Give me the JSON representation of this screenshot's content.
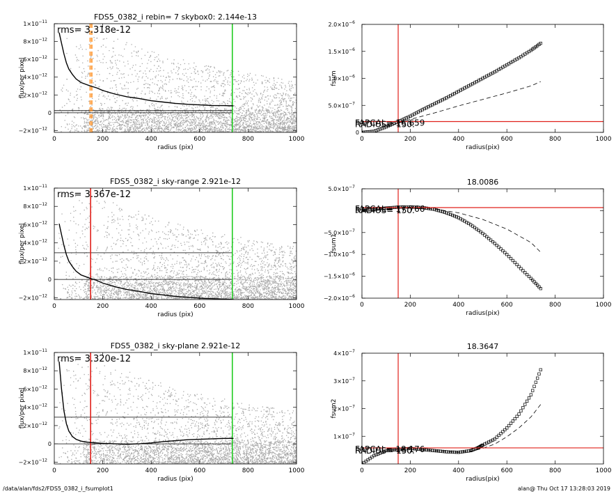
{
  "footer": {
    "path": "/data/alan/fds2/FDS5_0382_i_fsumplot1",
    "user_time": "alan@  Thu Oct 17 13:28:03 2019"
  },
  "colors": {
    "scatter": "#a8a8a8",
    "profile": "#000000",
    "orange": "#ff8c1a",
    "red": "#e0201a",
    "green": "#22cc22",
    "guide": "#000000"
  },
  "chart_data": [
    {
      "id": "p1",
      "type": "scatter",
      "title": "FDS5_0382_i rebin= 7    skybox0:  2.144e-13",
      "annotation": "rms= 3.318e-12",
      "xlabel": "radius (pix)",
      "ylabel": "flux/per pixel",
      "xlim": [
        0,
        1000
      ],
      "ylim": [
        -2.2e-12,
        1e-11
      ],
      "xticks": [
        0,
        200,
        400,
        600,
        800,
        1000
      ],
      "xtick_labels": [
        "0",
        "200",
        "400",
        "600",
        "800",
        "1000"
      ],
      "yticks": [
        -2e-12,
        0,
        2e-12,
        4e-12,
        6e-12,
        8e-12,
        1e-11
      ],
      "ytick_labels": [
        "−2×10",
        "0",
        "2×10",
        "4×10",
        "6×10",
        "8×10",
        "1×10"
      ],
      "ytick_exp": [
        "−12",
        "",
        "−12",
        "−12",
        "−12",
        "−12",
        "−11"
      ],
      "profile": {
        "x": [
          20,
          30,
          40,
          50,
          60,
          75,
          90,
          110,
          130,
          150,
          175,
          200,
          250,
          300,
          350,
          400,
          450,
          500,
          550,
          600,
          650,
          700,
          740
        ],
        "y": [
          9e-12,
          7.8e-12,
          6.6e-12,
          5.6e-12,
          4.9e-12,
          4.3e-12,
          3.8e-12,
          3.4e-12,
          3.2e-12,
          3e-12,
          2.8e-12,
          2.5e-12,
          2.1e-12,
          1.8e-12,
          1.6e-12,
          1.35e-12,
          1.2e-12,
          1.05e-12,
          9.5e-13,
          8.8e-13,
          8.2e-13,
          8e-13,
          7.8e-13
        ]
      },
      "hlines": [
        2.4e-13,
        0.0
      ],
      "vlines": [
        {
          "x": 148,
          "color": "orange",
          "dash": true
        },
        {
          "x": 155,
          "color": "orange",
          "dash": true
        },
        {
          "x": 735,
          "color": "green",
          "dash": false
        }
      ],
      "scatter_band": {
        "upper": [
          1e-11,
          9e-12,
          7e-12,
          5.5e-12,
          4.5e-12,
          3.6e-12
        ],
        "upper_x": [
          0,
          200,
          400,
          600,
          800,
          1000
        ],
        "lower": -2.2e-12
      }
    },
    {
      "id": "p2",
      "type": "line",
      "title": "",
      "annotation": "RADIUS= 150.",
      "annotation2": "FAPCAL= 16.659",
      "xlabel": "radius(pix)",
      "ylabel": "fsum",
      "xlim": [
        0,
        1000
      ],
      "ylim": [
        0,
        2e-06
      ],
      "xticks": [
        0,
        200,
        400,
        600,
        800,
        1000
      ],
      "xtick_labels": [
        "0",
        "200",
        "400",
        "600",
        "800",
        "1000"
      ],
      "yticks": [
        0,
        5e-07,
        1e-06,
        1.5e-06,
        2e-06
      ],
      "ytick_labels": [
        "0",
        "5.0×10",
        "1.0×10",
        "1.5×10",
        "2.0×10"
      ],
      "ytick_exp": [
        "",
        "−7",
        "−6",
        "−6",
        "−6"
      ],
      "markers": {
        "x": [
          0,
          50,
          100,
          150,
          200,
          250,
          300,
          350,
          400,
          450,
          500,
          550,
          600,
          650,
          700,
          740
        ],
        "y": [
          0,
          2e-08,
          1e-07,
          2e-07,
          3e-07,
          4.2e-07,
          5.3e-07,
          6.4e-07,
          7.6e-07,
          8.8e-07,
          1e-06,
          1.12e-06,
          1.25e-06,
          1.38e-06,
          1.52e-06,
          1.65e-06
        ]
      },
      "dashed": {
        "x": [
          100,
          200,
          300,
          400,
          500,
          600,
          700,
          740
        ],
        "y": [
          1e-07,
          2.4e-07,
          3.6e-07,
          4.9e-07,
          6.1e-07,
          7.3e-07,
          8.6e-07,
          9.4e-07
        ]
      },
      "vline_x": 150,
      "hline_y": 2e-07
    },
    {
      "id": "p3",
      "type": "scatter",
      "title": "FDS5_0382_i sky-range  2.921e-12",
      "annotation": "rms= 3.367e-12",
      "xlabel": "radius (pix)",
      "ylabel": "flux/per pixel",
      "xlim": [
        0,
        1000
      ],
      "ylim": [
        -2.2e-12,
        1e-11
      ],
      "xticks": [
        0,
        200,
        400,
        600,
        800,
        1000
      ],
      "xtick_labels": [
        "0",
        "200",
        "400",
        "600",
        "800",
        "1000"
      ],
      "yticks": [
        -2e-12,
        0,
        2e-12,
        4e-12,
        6e-12,
        8e-12,
        1e-11
      ],
      "ytick_labels": [
        "−2×10",
        "0",
        "2×10",
        "4×10",
        "6×10",
        "8×10",
        "1×10"
      ],
      "ytick_exp": [
        "−12",
        "",
        "−12",
        "−12",
        "−12",
        "−12",
        "−11"
      ],
      "profile": {
        "x": [
          20,
          30,
          40,
          50,
          60,
          75,
          90,
          110,
          130,
          150,
          175,
          200,
          250,
          300,
          350,
          400,
          450,
          500,
          550,
          600,
          650,
          700,
          740
        ],
        "y": [
          6.1e-12,
          4.9e-12,
          3.7e-12,
          2.7e-12,
          2e-12,
          1.4e-12,
          9e-13,
          5e-13,
          3e-13,
          1e-13,
          -1e-13,
          -4e-13,
          -8e-13,
          -1.1e-12,
          -1.3e-12,
          -1.55e-12,
          -1.7e-12,
          -1.85e-12,
          -1.95e-12,
          -2.05e-12,
          -2.1e-12,
          -2.15e-12,
          -2.2e-12
        ]
      },
      "hlines": [
        2.921e-12,
        0.0
      ],
      "vlines": [
        {
          "x": 150,
          "color": "red",
          "dash": false
        },
        {
          "x": 735,
          "color": "green",
          "dash": false
        }
      ],
      "scatter_band": {
        "upper": [
          1e-11,
          9e-12,
          7e-12,
          5.5e-12,
          4.5e-12,
          3.6e-12
        ],
        "upper_x": [
          0,
          200,
          400,
          600,
          800,
          1000
        ],
        "lower": -2.2e-12
      }
    },
    {
      "id": "p4",
      "type": "line",
      "title": "18.0086",
      "annotation": "RADIUS= 150.",
      "annotation2": "FAPCAL= 17.766",
      "xlabel": "radius(pix)",
      "ylabel": "fsum1",
      "xlim": [
        0,
        1000
      ],
      "ylim": [
        -2e-06,
        5e-07
      ],
      "xticks": [
        0,
        200,
        400,
        600,
        800,
        1000
      ],
      "xtick_labels": [
        "0",
        "200",
        "400",
        "600",
        "800",
        "1000"
      ],
      "yticks": [
        -2e-06,
        -1.5e-06,
        -1e-06,
        -5e-07,
        0,
        5e-07
      ],
      "ytick_labels": [
        "−2.0×10",
        "−1.5×10",
        "−1.0×10",
        "−5.0×10",
        "0",
        "5.0×10"
      ],
      "ytick_exp": [
        "−6",
        "−6",
        "−6",
        "−7",
        "",
        "−7"
      ],
      "markers": {
        "x": [
          0,
          50,
          100,
          150,
          200,
          250,
          300,
          350,
          400,
          450,
          500,
          550,
          600,
          650,
          700,
          740
        ],
        "y": [
          0,
          3e-08,
          6e-08,
          8e-08,
          8.5e-08,
          7e-08,
          3e-08,
          -5e-08,
          -1.6e-07,
          -3.2e-07,
          -5.2e-07,
          -7.5e-07,
          -1e-06,
          -1.28e-06,
          -1.55e-06,
          -1.78e-06
        ]
      },
      "dashed": {
        "x": [
          100,
          200,
          300,
          400,
          500,
          600,
          700,
          740
        ],
        "y": [
          6e-08,
          8e-08,
          4e-08,
          -5e-08,
          -2e-07,
          -4.2e-07,
          -7.3e-07,
          -9.5e-07
        ]
      },
      "vline_x": 150,
      "hline_y": 7e-08
    },
    {
      "id": "p5",
      "type": "scatter",
      "title": "FDS5_0382_i sky-plane  2.921e-12",
      "annotation": "rms= 3.320e-12",
      "xlabel": "radius (pix)",
      "ylabel": "flux/per pixel",
      "xlim": [
        0,
        1000
      ],
      "ylim": [
        -2.2e-12,
        1e-11
      ],
      "xticks": [
        0,
        200,
        400,
        600,
        800,
        1000
      ],
      "xtick_labels": [
        "0",
        "200",
        "400",
        "600",
        "800",
        "1000"
      ],
      "yticks": [
        -2e-12,
        0,
        2e-12,
        4e-12,
        6e-12,
        8e-12,
        1e-11
      ],
      "ytick_labels": [
        "−2×10",
        "0",
        "2×10",
        "4×10",
        "6×10",
        "8×10",
        "1×10"
      ],
      "ytick_exp": [
        "−12",
        "",
        "−12",
        "−12",
        "−12",
        "−12",
        "−11"
      ],
      "profile": {
        "x": [
          20,
          30,
          40,
          50,
          60,
          75,
          90,
          110,
          130,
          150,
          175,
          200,
          250,
          300,
          350,
          400,
          450,
          500,
          550,
          600,
          650,
          700,
          740
        ],
        "y": [
          9e-12,
          6e-12,
          3.6e-12,
          2.2e-12,
          1.4e-12,
          8e-13,
          5e-13,
          3e-13,
          2e-13,
          1.5e-13,
          1e-13,
          5e-14,
          0.0,
          -5e-14,
          0.0,
          1e-13,
          2.5e-13,
          3.5e-13,
          4.5e-13,
          5e-13,
          5.5e-13,
          6e-13,
          6e-13
        ]
      },
      "hlines": [
        2.921e-12,
        0.0
      ],
      "vlines": [
        {
          "x": 150,
          "color": "red",
          "dash": false
        },
        {
          "x": 735,
          "color": "green",
          "dash": false
        }
      ],
      "scatter_band": {
        "upper": [
          1e-11,
          9e-12,
          7e-12,
          5.5e-12,
          4.5e-12,
          3.6e-12
        ],
        "upper_x": [
          0,
          200,
          400,
          600,
          800,
          1000
        ],
        "lower": -2.2e-12
      }
    },
    {
      "id": "p6",
      "type": "line",
      "title": "18.3647",
      "annotation": "RADIUS= 150.",
      "annotation2": "FAPCAL= 18.176",
      "xlabel": "radius(pix)",
      "ylabel": "fsum2",
      "xlim": [
        0,
        1000
      ],
      "ylim": [
        0,
        4e-07
      ],
      "xticks": [
        0,
        200,
        400,
        600,
        800,
        1000
      ],
      "xtick_labels": [
        "0",
        "200",
        "400",
        "600",
        "800",
        "1000"
      ],
      "yticks": [
        1e-07,
        2e-07,
        3e-07,
        4e-07
      ],
      "ytick_labels": [
        "1×10",
        "2×10",
        "3×10",
        "4×10"
      ],
      "ytick_exp": [
        "−7",
        "−7",
        "−7",
        "−7"
      ],
      "markers": {
        "x": [
          0,
          50,
          100,
          150,
          200,
          250,
          300,
          350,
          400,
          450,
          480,
          500,
          550,
          600,
          650,
          700,
          740
        ],
        "y": [
          0,
          3e-08,
          4.8e-08,
          5.2e-08,
          5.6e-08,
          5.2e-08,
          4.8e-08,
          4.4e-08,
          4.2e-08,
          4.8e-08,
          5.8e-08,
          6.8e-08,
          9e-08,
          1.3e-07,
          1.8e-07,
          2.5e-07,
          3.4e-07
        ]
      },
      "dashed": {
        "x": [
          100,
          200,
          300,
          400,
          450,
          500,
          550,
          600,
          650,
          700,
          740
        ],
        "y": [
          4.8e-08,
          5.6e-08,
          4.8e-08,
          4.2e-08,
          4.6e-08,
          5.6e-08,
          7.2e-08,
          9.8e-08,
          1.3e-07,
          1.7e-07,
          2.15e-07
        ]
      },
      "vline_x": 150,
      "hline_y": 5.8e-08
    }
  ]
}
